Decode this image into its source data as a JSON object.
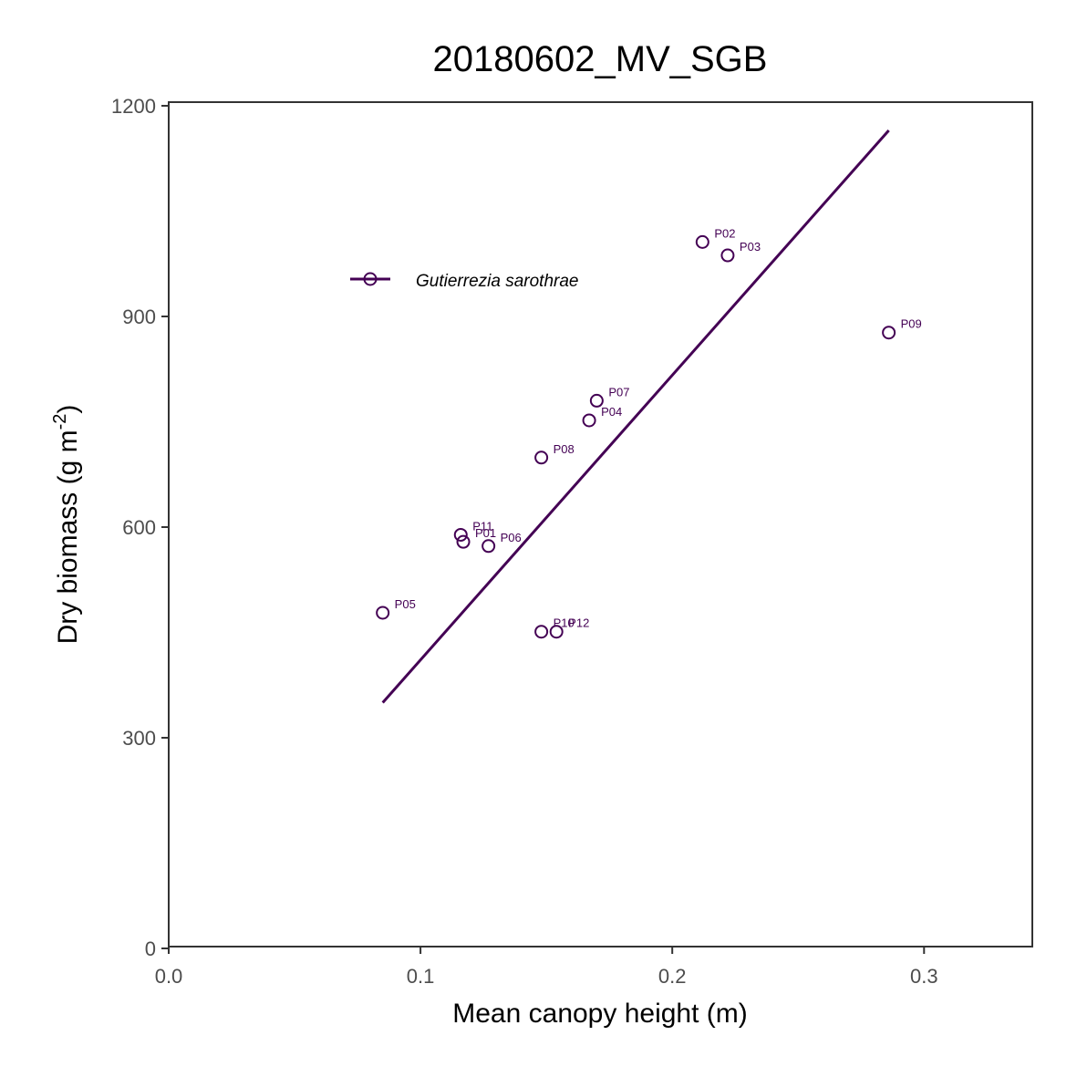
{
  "chart_data": {
    "type": "scatter",
    "title": "20180602_MV_SGB",
    "xlabel": "Mean canopy height (m)",
    "ylabel": "Dry biomass (g m",
    "ylabel_sup": "-2",
    "ylabel_close": ")",
    "xlim": [
      0,
      0.343
    ],
    "ylim": [
      0,
      1200
    ],
    "x_ticks": [
      0.0,
      0.1,
      0.2,
      0.3
    ],
    "x_tick_labels": [
      "0.0",
      "0.1",
      "0.2",
      "0.3"
    ],
    "y_ticks": [
      0,
      300,
      600,
      900,
      1200
    ],
    "y_tick_labels": [
      "0",
      "300",
      "600",
      "900",
      "1200"
    ],
    "grid": false,
    "legend_position": "top-left",
    "color": "#440154",
    "series": [
      {
        "name": "Gutierrezia sarothrae",
        "points": [
          {
            "label": "P01",
            "x": 0.117,
            "y": 579
          },
          {
            "label": "P02",
            "x": 0.212,
            "y": 1006
          },
          {
            "label": "P03",
            "x": 0.222,
            "y": 987
          },
          {
            "label": "P04",
            "x": 0.167,
            "y": 752
          },
          {
            "label": "P05",
            "x": 0.085,
            "y": 478
          },
          {
            "label": "P06",
            "x": 0.127,
            "y": 573
          },
          {
            "label": "P07",
            "x": 0.17,
            "y": 780
          },
          {
            "label": "P08",
            "x": 0.148,
            "y": 699
          },
          {
            "label": "P09",
            "x": 0.286,
            "y": 877
          },
          {
            "label": "P10",
            "x": 0.148,
            "y": 451
          },
          {
            "label": "P11",
            "x": 0.116,
            "y": 589
          },
          {
            "label": "P12",
            "x": 0.154,
            "y": 451
          }
        ],
        "fit_line": {
          "x": [
            0.085,
            0.286
          ],
          "y": [
            350,
            1165
          ]
        }
      }
    ]
  }
}
